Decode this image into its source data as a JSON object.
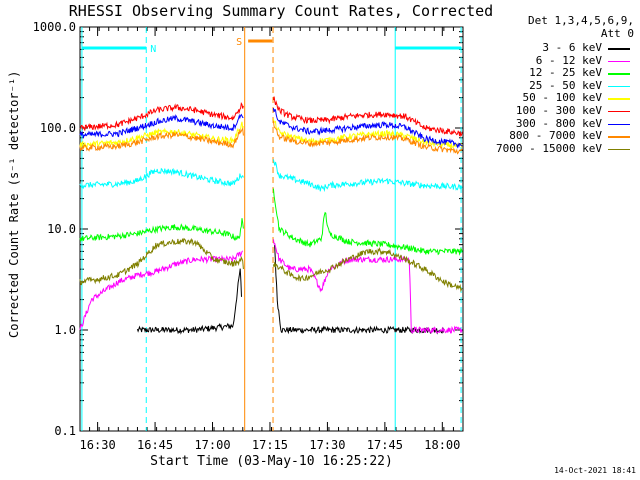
{
  "chart_data": {
    "type": "line",
    "title": "RHESSI Observing Summary Count Rates, Corrected",
    "xlabel": "Start Time (03-May-10 16:25:22)",
    "ylabel": "Corrected Count Rate (s⁻¹ detector⁻¹)",
    "y_scale": "log",
    "ylim": [
      0.1,
      1000
    ],
    "xlim_minutes": [
      0,
      100
    ],
    "x_ticks": [
      {
        "minute": 4.6,
        "label": "16:30"
      },
      {
        "minute": 19.6,
        "label": "16:45"
      },
      {
        "minute": 34.6,
        "label": "17:00"
      },
      {
        "minute": 49.6,
        "label": "17:15"
      },
      {
        "minute": 64.6,
        "label": "17:30"
      },
      {
        "minute": 79.6,
        "label": "17:45"
      },
      {
        "minute": 94.6,
        "label": "18:00"
      }
    ],
    "y_ticks": [
      {
        "value": 0.1,
        "label": "0.1"
      },
      {
        "value": 1,
        "label": "1.0"
      },
      {
        "value": 10,
        "label": "10.0"
      },
      {
        "value": 100,
        "label": "100.0"
      },
      {
        "value": 1000,
        "label": "1000.0"
      }
    ],
    "detectors": "Det 1,3,4,5,6,9,",
    "attenuator": "Att 0",
    "gaps_minutes": [
      [
        42.9,
        50.4
      ]
    ],
    "series": [
      {
        "name": "3 - 6 keV",
        "color": "#000000",
        "points": [
          [
            15,
            1
          ],
          [
            30,
            1
          ],
          [
            40,
            1.1
          ],
          [
            41.8,
            4
          ],
          [
            42.3,
            1.8
          ],
          [
            50.8,
            7
          ],
          [
            51.5,
            2
          ],
          [
            52.5,
            1
          ],
          [
            95,
            1
          ]
        ]
      },
      {
        "name": "6 - 12 keV",
        "color": "#ff00ff",
        "points": [
          [
            0,
            1
          ],
          [
            3,
            2
          ],
          [
            10,
            3
          ],
          [
            15,
            3.5
          ],
          [
            20,
            3.8
          ],
          [
            25,
            4.5
          ],
          [
            30,
            5
          ],
          [
            40,
            5
          ],
          [
            42.5,
            6
          ],
          [
            50.5,
            8
          ],
          [
            52,
            5
          ],
          [
            55,
            4
          ],
          [
            60,
            4
          ],
          [
            63,
            2.5
          ],
          [
            65,
            4
          ],
          [
            70,
            5
          ],
          [
            80,
            5
          ],
          [
            86,
            5
          ],
          [
            86.5,
            1
          ],
          [
            100,
            1
          ]
        ]
      },
      {
        "name": "12 - 25 keV",
        "color": "#00ff00",
        "points": [
          [
            0,
            8
          ],
          [
            10,
            8.5
          ],
          [
            15,
            9
          ],
          [
            20,
            10
          ],
          [
            25,
            10.5
          ],
          [
            30,
            10
          ],
          [
            38,
            9
          ],
          [
            41.5,
            8
          ],
          [
            42.3,
            12
          ],
          [
            42.8,
            9
          ],
          [
            50.5,
            25
          ],
          [
            52,
            10
          ],
          [
            56,
            8
          ],
          [
            60,
            7
          ],
          [
            63,
            8
          ],
          [
            64,
            15
          ],
          [
            65,
            9
          ],
          [
            70,
            7.5
          ],
          [
            80,
            7
          ],
          [
            86,
            6.5
          ],
          [
            90,
            6
          ],
          [
            100,
            6
          ]
        ]
      },
      {
        "name": "25 - 50 keV",
        "color": "#00ffff",
        "points": [
          [
            0,
            27
          ],
          [
            10,
            28
          ],
          [
            15,
            30
          ],
          [
            18,
            35
          ],
          [
            20,
            38
          ],
          [
            25,
            37
          ],
          [
            30,
            33
          ],
          [
            35,
            30
          ],
          [
            40,
            28
          ],
          [
            42.3,
            35
          ],
          [
            42.8,
            30
          ],
          [
            50.5,
            50
          ],
          [
            52,
            34
          ],
          [
            60,
            28
          ],
          [
            63,
            25
          ],
          [
            65,
            27
          ],
          [
            70,
            28
          ],
          [
            80,
            30
          ],
          [
            86,
            28
          ],
          [
            90,
            27
          ],
          [
            100,
            26
          ]
        ]
      },
      {
        "name": "50 - 100 keV",
        "color": "#ffff00",
        "points": [
          [
            0,
            68
          ],
          [
            10,
            72
          ],
          [
            15,
            80
          ],
          [
            20,
            90
          ],
          [
            25,
            92
          ],
          [
            30,
            85
          ],
          [
            35,
            78
          ],
          [
            40,
            75
          ],
          [
            42.3,
            110
          ],
          [
            42.8,
            95
          ],
          [
            50.5,
            120
          ],
          [
            52,
            90
          ],
          [
            56,
            80
          ],
          [
            60,
            74
          ],
          [
            65,
            76
          ],
          [
            70,
            82
          ],
          [
            75,
            86
          ],
          [
            80,
            88
          ],
          [
            85,
            84
          ],
          [
            90,
            72
          ],
          [
            100,
            65
          ]
        ]
      },
      {
        "name": "100 - 300 keV",
        "color": "#ff0000",
        "points": [
          [
            0,
            100
          ],
          [
            10,
            108
          ],
          [
            15,
            125
          ],
          [
            20,
            150
          ],
          [
            25,
            160
          ],
          [
            30,
            150
          ],
          [
            35,
            135
          ],
          [
            40,
            125
          ],
          [
            42.3,
            170
          ],
          [
            42.8,
            150
          ],
          [
            50.5,
            200
          ],
          [
            52,
            150
          ],
          [
            55,
            130
          ],
          [
            60,
            118
          ],
          [
            65,
            120
          ],
          [
            70,
            130
          ],
          [
            75,
            135
          ],
          [
            80,
            137
          ],
          [
            85,
            130
          ],
          [
            90,
            100
          ],
          [
            100,
            88
          ]
        ]
      },
      {
        "name": "300 - 800 keV",
        "color": "#0000ff",
        "points": [
          [
            0,
            85
          ],
          [
            10,
            88
          ],
          [
            15,
            100
          ],
          [
            20,
            115
          ],
          [
            25,
            125
          ],
          [
            30,
            115
          ],
          [
            35,
            105
          ],
          [
            40,
            100
          ],
          [
            42.3,
            140
          ],
          [
            42.8,
            115
          ],
          [
            50.5,
            160
          ],
          [
            52,
            115
          ],
          [
            56,
            100
          ],
          [
            60,
            92
          ],
          [
            65,
            95
          ],
          [
            70,
            100
          ],
          [
            75,
            105
          ],
          [
            80,
            108
          ],
          [
            85,
            102
          ],
          [
            90,
            78
          ],
          [
            100,
            68
          ]
        ]
      },
      {
        "name": "800 - 7000 keV",
        "color": "#ff8800",
        "points": [
          [
            0,
            63
          ],
          [
            10,
            66
          ],
          [
            15,
            72
          ],
          [
            20,
            82
          ],
          [
            25,
            86
          ],
          [
            30,
            80
          ],
          [
            35,
            73
          ],
          [
            40,
            68
          ],
          [
            42.3,
            100
          ],
          [
            42.8,
            85
          ],
          [
            50.5,
            110
          ],
          [
            52,
            82
          ],
          [
            56,
            74
          ],
          [
            60,
            70
          ],
          [
            65,
            72
          ],
          [
            70,
            76
          ],
          [
            75,
            80
          ],
          [
            80,
            82
          ],
          [
            85,
            78
          ],
          [
            90,
            65
          ],
          [
            100,
            58
          ]
        ]
      },
      {
        "name": "7000 - 15000 keV",
        "color": "#808000",
        "points": [
          [
            0,
            3
          ],
          [
            5,
            3.2
          ],
          [
            10,
            3.5
          ],
          [
            15,
            4.5
          ],
          [
            20,
            7
          ],
          [
            25,
            7.5
          ],
          [
            30,
            7.5
          ],
          [
            35,
            5
          ],
          [
            40,
            4.5
          ],
          [
            42.3,
            5
          ],
          [
            42.8,
            4
          ],
          [
            50.5,
            4.5
          ],
          [
            52,
            4.2
          ],
          [
            55,
            3.5
          ],
          [
            58,
            3.2
          ],
          [
            60,
            3.4
          ],
          [
            63,
            3.8
          ],
          [
            65,
            4
          ],
          [
            70,
            5
          ],
          [
            75,
            6
          ],
          [
            80,
            6
          ],
          [
            85,
            5
          ],
          [
            90,
            4
          ],
          [
            95,
            3
          ],
          [
            100,
            2.5
          ]
        ]
      }
    ],
    "annotations": [
      {
        "label": "N",
        "color": "#00ffff",
        "kind": "night-bar",
        "start_minute": 0.5,
        "end_minute": 17.3
      },
      {
        "label": "",
        "color": "#00ffff",
        "kind": "night-bar",
        "start_minute": 82.3,
        "end_minute": 99.5
      },
      {
        "label": "S",
        "color": "#ff8800",
        "kind": "saa-bar",
        "start_minute": 43.9,
        "end_minute": 50.2
      }
    ],
    "vertical_markers": [
      {
        "minute": 0.5,
        "color": "#00ffff",
        "style": "solid"
      },
      {
        "minute": 17.3,
        "color": "#00ffff",
        "style": "dashed"
      },
      {
        "minute": 82.3,
        "color": "#00ffff",
        "style": "solid"
      },
      {
        "minute": 99.5,
        "color": "#00ffff",
        "style": "dashed"
      },
      {
        "minute": 43.0,
        "color": "#ff8800",
        "style": "solid"
      },
      {
        "minute": 50.4,
        "color": "#ff8800",
        "style": "dashed"
      }
    ],
    "legend_position": "right"
  },
  "footer": {
    "timestamp": "14-Oct-2021 18:41"
  }
}
